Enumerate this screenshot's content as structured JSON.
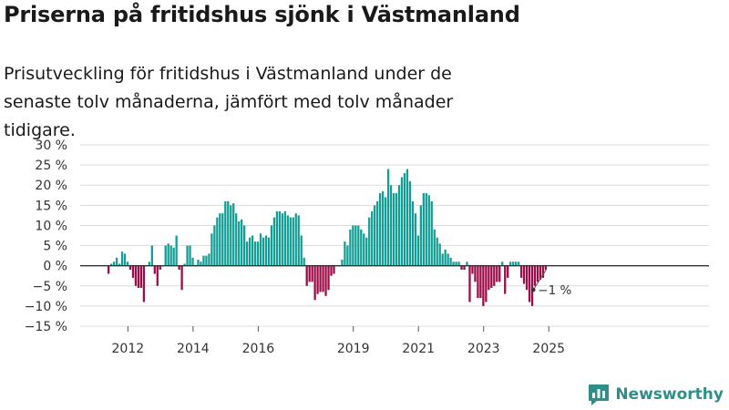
{
  "header": {
    "title": "Priserna på fritidshus sjönk i Västmanland",
    "subtitle": "Prisutveckling för fritidshus i Västmanland under de senaste tolv månaderna, jämfört med tolv månader tidigare."
  },
  "brand": {
    "name": "Newsworthy",
    "logo_icon": "newsworthy-logo-icon"
  },
  "colors": {
    "positive": "#129e95",
    "negative": "#9d0c48",
    "grid": "#dcdcdc",
    "zero": "#333333"
  },
  "chart_data": {
    "type": "bar",
    "title": "Priserna på fritidshus sjönk i Västmanland",
    "xlabel": "",
    "ylabel": "",
    "ylim": [
      -15,
      30
    ],
    "y_ticks": [
      30,
      25,
      20,
      15,
      10,
      5,
      0,
      -5,
      -10,
      -15
    ],
    "y_tick_labels": [
      "30 %",
      "25 %",
      "20 %",
      "15 %",
      "10 %",
      "5 %",
      "0 %",
      "−5 %",
      "−10 %",
      "−15 %"
    ],
    "x_start": "2011-06",
    "x_ticks": [
      {
        "label": "2012",
        "index": 7
      },
      {
        "label": "2014",
        "index": 31
      },
      {
        "label": "2016",
        "index": 55
      },
      {
        "label": "2019",
        "index": 90
      },
      {
        "label": "2021",
        "index": 114
      },
      {
        "label": "2023",
        "index": 138
      },
      {
        "label": "2025",
        "index": 162
      }
    ],
    "last_label": "−1 %",
    "values": [
      -2,
      0.5,
      1,
      2,
      0.5,
      3.5,
      3,
      1,
      -1,
      -3,
      -5,
      -5.5,
      -5.5,
      -9,
      0,
      1,
      5,
      -2,
      -5,
      -1,
      0,
      5,
      5.5,
      5,
      4.5,
      7.5,
      -1,
      -6,
      0.5,
      5,
      5,
      2,
      0,
      1.5,
      1,
      2.5,
      2.5,
      3,
      8,
      10,
      12,
      13,
      13,
      16,
      16,
      15,
      15.5,
      13,
      11,
      11.5,
      10,
      6,
      7,
      7.5,
      6,
      6,
      8,
      7,
      7.5,
      7,
      10,
      12,
      13.5,
      13.5,
      13,
      13.5,
      12.5,
      12,
      12,
      13,
      12.5,
      7.5,
      2,
      -5,
      -4,
      -4,
      -8.5,
      -7,
      -6.5,
      -6.5,
      -7.5,
      -6,
      -2.5,
      -2,
      0,
      0,
      1.5,
      6,
      5,
      9,
      10,
      10,
      10,
      9,
      8,
      7,
      12,
      13.5,
      15,
      16,
      18,
      18.5,
      17,
      24,
      20,
      18,
      18,
      20,
      22,
      23,
      24,
      21,
      16,
      13,
      7.5,
      15,
      18,
      18,
      17.5,
      16,
      9,
      7,
      5.5,
      3,
      4,
      3,
      2,
      1,
      1,
      1,
      -1,
      -1,
      1,
      -9,
      -2,
      -4,
      -8,
      -8,
      -10,
      -9,
      -6,
      -5.5,
      -5,
      -4,
      -4,
      1,
      -7,
      -3,
      1,
      1,
      1,
      1,
      -3,
      -4.5,
      -6,
      -9,
      -10,
      -5,
      -4,
      -3.5,
      -3,
      -1
    ]
  }
}
